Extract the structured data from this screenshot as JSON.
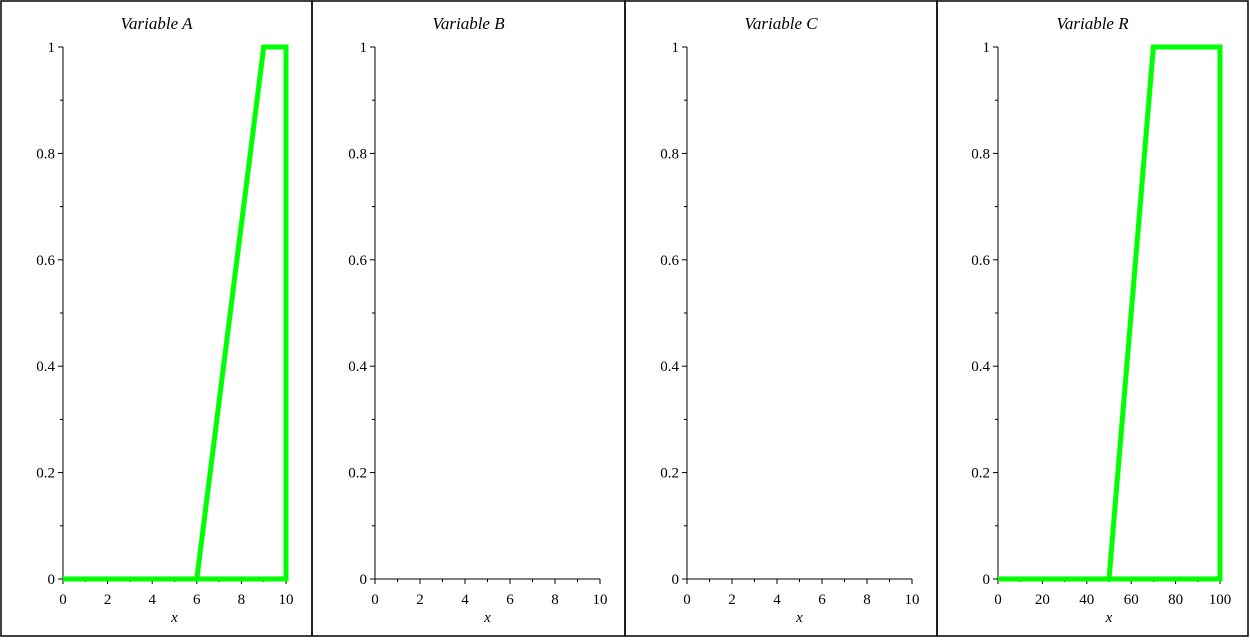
{
  "series_color": "#00ff00",
  "chart_data": [
    {
      "type": "line",
      "title": "Variable A",
      "xlabel": "x",
      "ylabel": "",
      "xlim": [
        0,
        10
      ],
      "ylim": [
        0,
        1
      ],
      "xticks": [
        0,
        2,
        4,
        6,
        8,
        10
      ],
      "xtick_labels": [
        "0",
        "2",
        "4",
        "6",
        "8",
        "10"
      ],
      "yticks": [
        0,
        0.2,
        0.4,
        0.6,
        0.8,
        1
      ],
      "ytick_labels": [
        "0",
        "0.2",
        "0.4",
        "0.6",
        "0.8",
        "1"
      ],
      "series": [
        {
          "x": [
            0,
            6,
            9,
            10,
            10,
            0
          ],
          "y": [
            0,
            0,
            1,
            1,
            0,
            0
          ]
        }
      ]
    },
    {
      "type": "line",
      "title": "Variable B",
      "xlabel": "x",
      "ylabel": "",
      "xlim": [
        0,
        10
      ],
      "ylim": [
        0,
        1
      ],
      "xticks": [
        0,
        2,
        4,
        6,
        8,
        10
      ],
      "xtick_labels": [
        "0",
        "2",
        "4",
        "6",
        "8",
        "10"
      ],
      "yticks": [
        0,
        0.2,
        0.4,
        0.6,
        0.8,
        1
      ],
      "ytick_labels": [
        "0",
        "0.2",
        "0.4",
        "0.6",
        "0.8",
        "1"
      ],
      "series": []
    },
    {
      "type": "line",
      "title": "Variable C",
      "xlabel": "x",
      "ylabel": "",
      "xlim": [
        0,
        10
      ],
      "ylim": [
        0,
        1
      ],
      "xticks": [
        0,
        2,
        4,
        6,
        8,
        10
      ],
      "xtick_labels": [
        "0",
        "2",
        "4",
        "6",
        "8",
        "10"
      ],
      "yticks": [
        0,
        0.2,
        0.4,
        0.6,
        0.8,
        1
      ],
      "ytick_labels": [
        "0",
        "0.2",
        "0.4",
        "0.6",
        "0.8",
        "1"
      ],
      "series": []
    },
    {
      "type": "line",
      "title": "Variable R",
      "xlabel": "x",
      "ylabel": "",
      "xlim": [
        0,
        100
      ],
      "ylim": [
        0,
        1
      ],
      "xticks": [
        0,
        20,
        40,
        60,
        80,
        100
      ],
      "xtick_labels": [
        "0",
        "20",
        "40",
        "60",
        "80",
        "100"
      ],
      "yticks": [
        0,
        0.2,
        0.4,
        0.6,
        0.8,
        1
      ],
      "ytick_labels": [
        "0",
        "0.2",
        "0.4",
        "0.6",
        "0.8",
        "1"
      ],
      "series": [
        {
          "x": [
            0,
            50,
            70,
            100,
            100,
            0
          ],
          "y": [
            0,
            0,
            1,
            1,
            0,
            0
          ]
        }
      ]
    }
  ]
}
